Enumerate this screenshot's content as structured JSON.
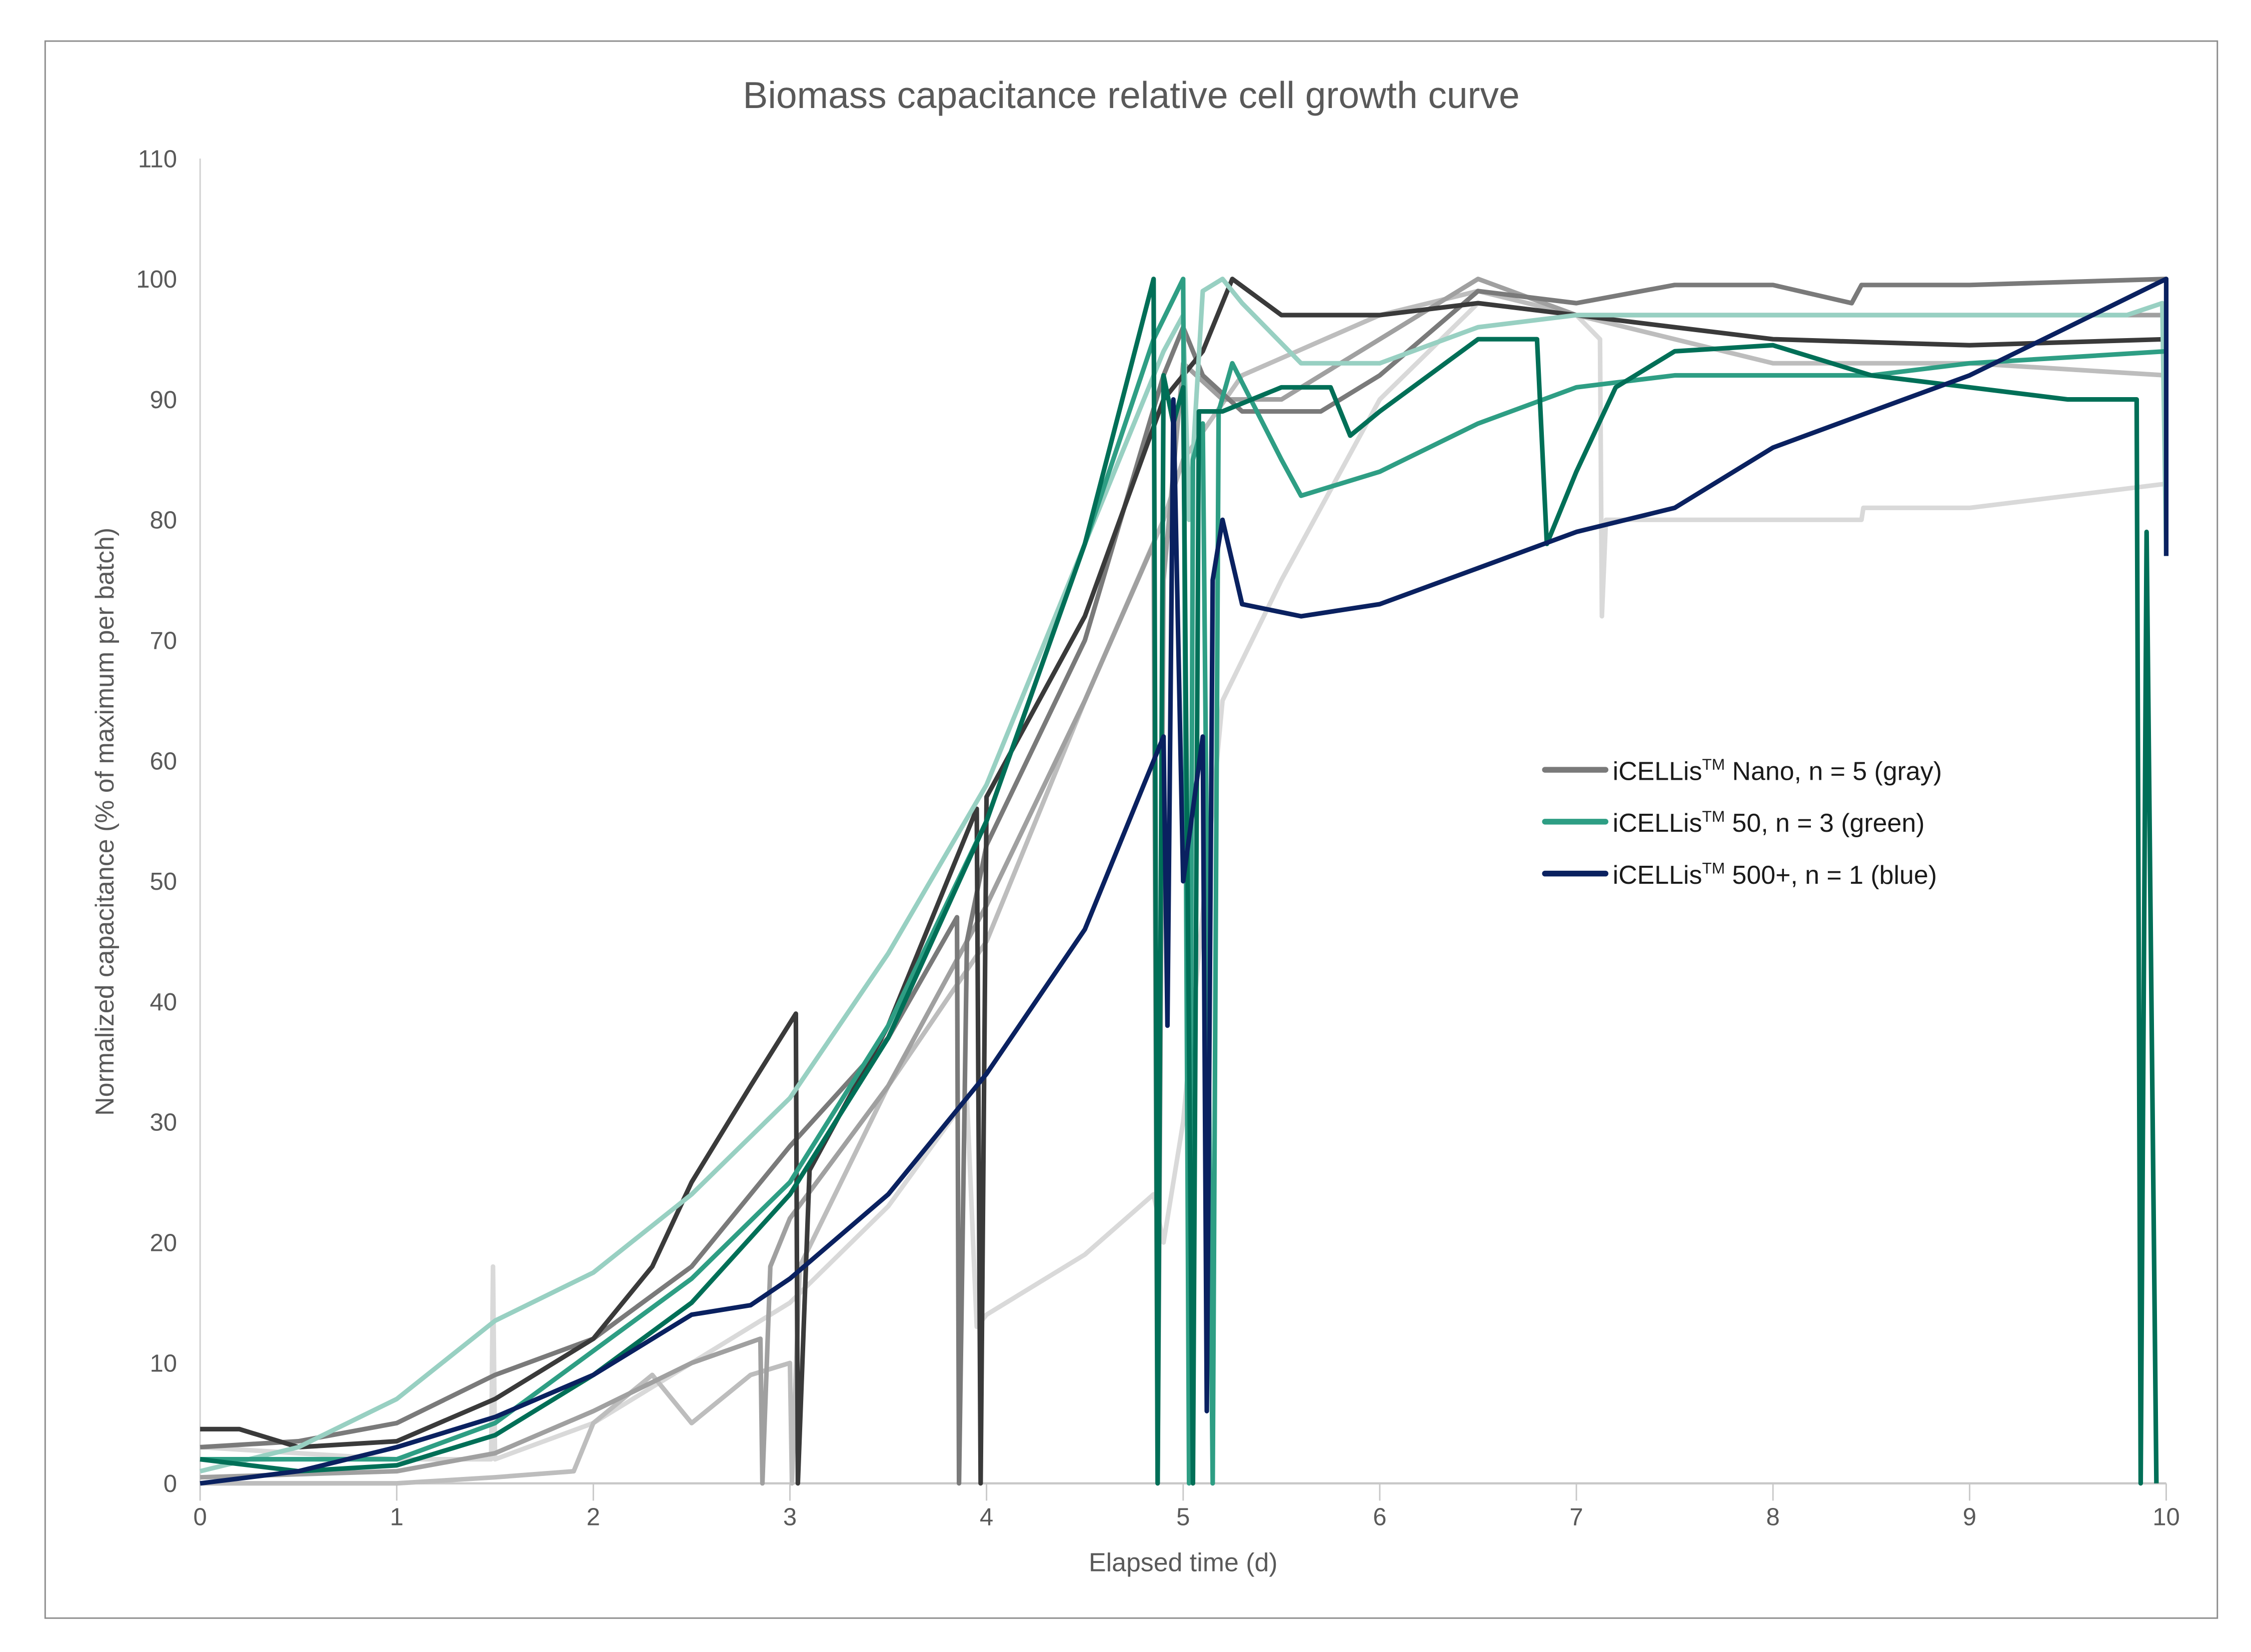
{
  "chart_data": {
    "type": "line",
    "title": "Biomass capacitance relative cell growth curve",
    "xlabel": "Elapsed time (d)",
    "ylabel": "Normalized capacitance (% of maximum per batch)",
    "xlim": [
      0,
      10
    ],
    "ylim": [
      0,
      110
    ],
    "xticks": [
      0,
      1,
      2,
      3,
      4,
      5,
      6,
      7,
      8,
      9,
      10
    ],
    "yticks": [
      0,
      10,
      20,
      30,
      40,
      50,
      60,
      70,
      80,
      90,
      100,
      110
    ],
    "grid": false,
    "legend_position": "right",
    "legend": [
      {
        "label": "iCELLis",
        "sup": "TM",
        "rest": " Nano, n = 5 (gray)",
        "color": "#7a7a7a"
      },
      {
        "label": "iCELLis",
        "sup": "TM",
        "rest": " 50, n = 3 (green)",
        "color": "#2e9e84"
      },
      {
        "label": "iCELLis",
        "sup": "TM",
        "rest": " 500+, n = 1 (blue)",
        "color": "#0a2160"
      }
    ],
    "series": [
      {
        "group": "gray",
        "color": "#d9d9d9",
        "points": [
          [
            0,
            3
          ],
          [
            1,
            2
          ],
          [
            1.48,
            2
          ],
          [
            1.49,
            18
          ],
          [
            1.5,
            2
          ],
          [
            2,
            5
          ],
          [
            2.5,
            10
          ],
          [
            3,
            15
          ],
          [
            3.5,
            23
          ],
          [
            3.9,
            32
          ],
          [
            3.95,
            13
          ],
          [
            4,
            14
          ],
          [
            4.5,
            19
          ],
          [
            4.85,
            24
          ],
          [
            4.9,
            20
          ],
          [
            5,
            30
          ],
          [
            5.2,
            65
          ],
          [
            5.5,
            75
          ],
          [
            6,
            90
          ],
          [
            6.5,
            98
          ],
          [
            7,
            97
          ],
          [
            7.12,
            95
          ],
          [
            7.13,
            72
          ],
          [
            7.15,
            80
          ],
          [
            8,
            80
          ],
          [
            8.45,
            80
          ],
          [
            8.46,
            81
          ],
          [
            9,
            81
          ],
          [
            10,
            83
          ]
        ]
      },
      {
        "group": "gray",
        "color": "#bdbdbd",
        "points": [
          [
            0,
            0
          ],
          [
            1,
            0
          ],
          [
            1.5,
            0.5
          ],
          [
            1.9,
            1
          ],
          [
            2,
            5
          ],
          [
            2.3,
            9
          ],
          [
            2.5,
            5
          ],
          [
            2.8,
            9
          ],
          [
            3,
            10
          ],
          [
            3.01,
            0
          ],
          [
            3.05,
            18
          ],
          [
            3.5,
            33
          ],
          [
            4,
            45
          ],
          [
            4.5,
            65
          ],
          [
            4.9,
            80
          ],
          [
            5,
            85
          ],
          [
            5.3,
            92
          ],
          [
            6,
            97
          ],
          [
            6.5,
            99
          ],
          [
            7,
            97
          ],
          [
            8,
            93
          ],
          [
            9,
            93
          ],
          [
            10,
            92
          ]
        ]
      },
      {
        "group": "gray",
        "color": "#a0a0a0",
        "points": [
          [
            0,
            0.5
          ],
          [
            1,
            1
          ],
          [
            1.5,
            2.5
          ],
          [
            2,
            6
          ],
          [
            2.5,
            10
          ],
          [
            2.85,
            12
          ],
          [
            2.86,
            0
          ],
          [
            2.9,
            18
          ],
          [
            3,
            22
          ],
          [
            3.5,
            33
          ],
          [
            4,
            48
          ],
          [
            4.5,
            65
          ],
          [
            4.85,
            78
          ],
          [
            4.87,
            0
          ],
          [
            4.9,
            75
          ],
          [
            5,
            93
          ],
          [
            5.2,
            90
          ],
          [
            5.5,
            90
          ],
          [
            6,
            95
          ],
          [
            6.5,
            100
          ],
          [
            7,
            97
          ],
          [
            8,
            97
          ],
          [
            9,
            97
          ],
          [
            10,
            97
          ]
        ]
      },
      {
        "group": "gray",
        "color": "#7a7a7a",
        "points": [
          [
            0,
            3
          ],
          [
            0.5,
            3.5
          ],
          [
            1,
            5
          ],
          [
            1.5,
            9
          ],
          [
            2,
            12
          ],
          [
            2.5,
            18
          ],
          [
            3,
            28
          ],
          [
            3.5,
            37
          ],
          [
            3.85,
            47
          ],
          [
            3.86,
            0
          ],
          [
            3.9,
            45
          ],
          [
            4,
            53
          ],
          [
            4.5,
            70
          ],
          [
            4.9,
            92
          ],
          [
            5,
            96
          ],
          [
            5.1,
            92
          ],
          [
            5.3,
            89
          ],
          [
            5.7,
            89
          ],
          [
            6,
            92
          ],
          [
            6.5,
            99
          ],
          [
            7,
            98
          ],
          [
            7.5,
            99.5
          ],
          [
            8,
            99.5
          ],
          [
            8.4,
            98
          ],
          [
            8.45,
            99.5
          ],
          [
            9,
            99.5
          ],
          [
            10,
            100
          ]
        ]
      },
      {
        "group": "gray",
        "color": "#3a3a3a",
        "points": [
          [
            0,
            4.5
          ],
          [
            0.2,
            4.5
          ],
          [
            0.5,
            3
          ],
          [
            1,
            3.5
          ],
          [
            1.5,
            7
          ],
          [
            2,
            12
          ],
          [
            2.3,
            18
          ],
          [
            2.5,
            25
          ],
          [
            2.8,
            33
          ],
          [
            3.03,
            39
          ],
          [
            3.04,
            0
          ],
          [
            3.1,
            26
          ],
          [
            3.5,
            38
          ],
          [
            3.95,
            56
          ],
          [
            3.97,
            0
          ],
          [
            4,
            57
          ],
          [
            4.5,
            72
          ],
          [
            4.9,
            90
          ],
          [
            5.1,
            94
          ],
          [
            5.25,
            100
          ],
          [
            5.5,
            97
          ],
          [
            6,
            97
          ],
          [
            6.5,
            98
          ],
          [
            7,
            97
          ],
          [
            7.5,
            96
          ],
          [
            8,
            95
          ],
          [
            9,
            94.5
          ],
          [
            10,
            95
          ]
        ]
      },
      {
        "group": "green",
        "color": "#98d0c2",
        "points": [
          [
            0,
            1
          ],
          [
            0.5,
            3
          ],
          [
            1,
            7
          ],
          [
            1.5,
            13.5
          ],
          [
            2,
            17.5
          ],
          [
            2.5,
            24
          ],
          [
            3,
            32
          ],
          [
            3.5,
            44
          ],
          [
            4,
            58
          ],
          [
            4.5,
            78
          ],
          [
            4.9,
            94
          ],
          [
            5,
            97
          ],
          [
            5.03,
            80
          ],
          [
            5.1,
            99
          ],
          [
            5.2,
            100
          ],
          [
            5.3,
            98
          ],
          [
            5.6,
            93
          ],
          [
            6,
            93
          ],
          [
            6.5,
            96
          ],
          [
            7,
            97
          ],
          [
            8,
            97
          ],
          [
            9,
            97
          ],
          [
            9.8,
            97
          ],
          [
            9.98,
            98
          ],
          [
            10,
            77
          ]
        ]
      },
      {
        "group": "green",
        "color": "#2e9e84",
        "points": [
          [
            0,
            2
          ],
          [
            0.5,
            2
          ],
          [
            1,
            2
          ],
          [
            1.5,
            5
          ],
          [
            2,
            11
          ],
          [
            2.5,
            17
          ],
          [
            3,
            25
          ],
          [
            3.5,
            38
          ],
          [
            4,
            55
          ],
          [
            4.5,
            78
          ],
          [
            4.85,
            95
          ],
          [
            5,
            100
          ],
          [
            5.03,
            0
          ],
          [
            5.05,
            85
          ],
          [
            5.1,
            88
          ],
          [
            5.15,
            0
          ],
          [
            5.18,
            89
          ],
          [
            5.25,
            93
          ],
          [
            5.5,
            85
          ],
          [
            5.6,
            82
          ],
          [
            6,
            84
          ],
          [
            6.5,
            88
          ],
          [
            7,
            91
          ],
          [
            7.5,
            92
          ],
          [
            8,
            92
          ],
          [
            8.5,
            92
          ],
          [
            9,
            93
          ],
          [
            9.5,
            93.5
          ],
          [
            10,
            94
          ]
        ]
      },
      {
        "group": "green",
        "color": "#006f57",
        "points": [
          [
            0,
            2
          ],
          [
            0.5,
            1
          ],
          [
            1,
            1.5
          ],
          [
            1.5,
            4
          ],
          [
            2,
            9
          ],
          [
            2.5,
            15
          ],
          [
            3,
            24
          ],
          [
            3.5,
            37
          ],
          [
            4,
            55
          ],
          [
            4.5,
            78
          ],
          [
            4.85,
            100
          ],
          [
            4.87,
            0
          ],
          [
            4.9,
            92
          ],
          [
            4.95,
            88
          ],
          [
            5,
            91
          ],
          [
            5.05,
            0
          ],
          [
            5.08,
            89
          ],
          [
            5.2,
            89
          ],
          [
            5.5,
            91
          ],
          [
            5.75,
            91
          ],
          [
            5.85,
            87
          ],
          [
            6,
            89
          ],
          [
            6.5,
            95
          ],
          [
            6.8,
            95
          ],
          [
            6.85,
            78
          ],
          [
            7,
            84
          ],
          [
            7.2,
            91
          ],
          [
            7.5,
            94
          ],
          [
            8,
            94.5
          ],
          [
            8.5,
            92
          ],
          [
            9,
            91
          ],
          [
            9.5,
            90
          ],
          [
            9.85,
            90
          ],
          [
            9.87,
            0
          ],
          [
            9.9,
            79
          ],
          [
            9.95,
            0
          ]
        ]
      },
      {
        "group": "blue",
        "color": "#0a2160",
        "points": [
          [
            0,
            0
          ],
          [
            0.5,
            1
          ],
          [
            1,
            3
          ],
          [
            1.5,
            5.5
          ],
          [
            2,
            9
          ],
          [
            2.5,
            14
          ],
          [
            2.8,
            14.8
          ],
          [
            3,
            17
          ],
          [
            3.5,
            24
          ],
          [
            4,
            34
          ],
          [
            4.5,
            46
          ],
          [
            4.8,
            58
          ],
          [
            4.9,
            62
          ],
          [
            4.92,
            38
          ],
          [
            4.95,
            90
          ],
          [
            5,
            50
          ],
          [
            5.1,
            62
          ],
          [
            5.12,
            6
          ],
          [
            5.15,
            75
          ],
          [
            5.2,
            80
          ],
          [
            5.3,
            73
          ],
          [
            5.6,
            72
          ],
          [
            6,
            73
          ],
          [
            6.5,
            76
          ],
          [
            7,
            79
          ],
          [
            7.5,
            81
          ],
          [
            8,
            86
          ],
          [
            8.5,
            89
          ],
          [
            9,
            92
          ],
          [
            9.5,
            96
          ],
          [
            10,
            100
          ],
          [
            10,
            77
          ]
        ]
      }
    ]
  }
}
